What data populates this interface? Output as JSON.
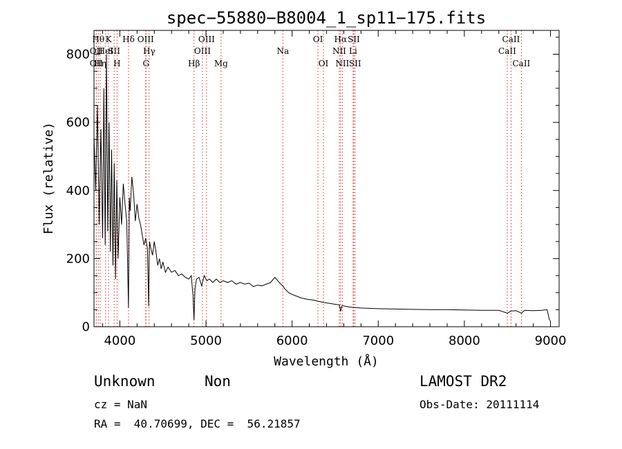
{
  "chart_data": {
    "type": "line",
    "title": "spec−55880−B8004_1_sp11−175.fits",
    "xlabel": "Wavelength (Å)",
    "ylabel": "Flux (relative)",
    "xlim": [
      3700,
      9100
    ],
    "ylim": [
      0,
      870
    ],
    "xticks": [
      4000,
      5000,
      6000,
      7000,
      8000,
      9000
    ],
    "yticks": [
      0,
      200,
      400,
      600,
      800
    ],
    "series": [
      {
        "x": [
          3700,
          3720,
          3740,
          3760,
          3780,
          3800,
          3815,
          3830,
          3845,
          3860,
          3875,
          3890,
          3905,
          3920,
          3935,
          3950,
          3965,
          3980,
          4000,
          4020,
          4040,
          4060,
          4080,
          4100,
          4110,
          4120,
          4140,
          4160,
          4180,
          4200,
          4220,
          4240,
          4260,
          4280,
          4300,
          4320,
          4335,
          4340,
          4345,
          4360,
          4380,
          4400,
          4420,
          4440,
          4460,
          4480,
          4500,
          4530,
          4560,
          4600,
          4640,
          4680,
          4720,
          4760,
          4800,
          4830,
          4850,
          4861,
          4872,
          4890,
          4920,
          4950,
          4980,
          5010,
          5040,
          5080,
          5120,
          5160,
          5200,
          5250,
          5300,
          5350,
          5400,
          5450,
          5500,
          5550,
          5600,
          5650,
          5700,
          5750,
          5800,
          5850,
          5890,
          5920,
          5960,
          6000,
          6050,
          6100,
          6150,
          6200,
          6250,
          6300,
          6350,
          6400,
          6450,
          6500,
          6550,
          6563,
          6580,
          6620,
          6660,
          6700,
          6750,
          6800,
          6900,
          7000,
          7200,
          7400,
          7600,
          7800,
          8000,
          8200,
          8400,
          8500,
          8540,
          8600,
          8662,
          8700,
          8800,
          8900,
          8960,
          8990
        ],
        "y": [
          560,
          400,
          650,
          300,
          580,
          260,
          700,
          240,
          800,
          280,
          600,
          220,
          520,
          180,
          480,
          140,
          430,
          200,
          380,
          300,
          420,
          360,
          310,
          55,
          380,
          340,
          440,
          390,
          310,
          360,
          320,
          300,
          270,
          240,
          260,
          230,
          60,
          200,
          250,
          230,
          210,
          250,
          220,
          180,
          200,
          170,
          190,
          160,
          175,
          160,
          165,
          150,
          155,
          145,
          140,
          150,
          90,
          20,
          110,
          140,
          145,
          120,
          150,
          135,
          140,
          130,
          140,
          130,
          135,
          130,
          135,
          125,
          130,
          125,
          128,
          118,
          122,
          120,
          125,
          130,
          145,
          130,
          120,
          110,
          100,
          95,
          90,
          85,
          82,
          80,
          78,
          75,
          72,
          70,
          68,
          66,
          64,
          45,
          62,
          60,
          58,
          57,
          56,
          55,
          54,
          53,
          52,
          51,
          50,
          50,
          49,
          48,
          48,
          40,
          46,
          47,
          40,
          48,
          47,
          48,
          50,
          18
        ]
      }
    ],
    "lines": [
      {
        "wl": 3727,
        "label": "OII",
        "tier": 2
      },
      {
        "wl": 3727,
        "label": "OII",
        "tier": 3
      },
      {
        "wl": 3750,
        "label": "Hθ",
        "tier": 1
      },
      {
        "wl": 3772,
        "label": "Hη",
        "tier": 3
      },
      {
        "wl": 3835,
        "label": "HeI",
        "tier": 2
      },
      {
        "wl": 3869,
        "label": "K",
        "tier": 1
      },
      {
        "wl": 3934,
        "label": "SII",
        "tier": 2
      },
      {
        "wl": 3968,
        "label": "H",
        "tier": 3
      },
      {
        "wl": 4101,
        "label": "Hδ",
        "tier": 1
      },
      {
        "wl": 4300,
        "label": "OIII",
        "tier": 1
      },
      {
        "wl": 4340,
        "label": "Hγ",
        "tier": 2
      },
      {
        "wl": 4304,
        "label": "G",
        "tier": 3
      },
      {
        "wl": 4861,
        "label": "Hβ",
        "tier": 3
      },
      {
        "wl": 4959,
        "label": "OIII",
        "tier": 2
      },
      {
        "wl": 5007,
        "label": "OIII",
        "tier": 1
      },
      {
        "wl": 5175,
        "label": "Mg",
        "tier": 3
      },
      {
        "wl": 5893,
        "label": "Na",
        "tier": 2
      },
      {
        "wl": 6300,
        "label": "OI",
        "tier": 1
      },
      {
        "wl": 6364,
        "label": "OI",
        "tier": 3
      },
      {
        "wl": 6548,
        "label": "NII",
        "tier": 2
      },
      {
        "wl": 6563,
        "label": "Hα",
        "tier": 1
      },
      {
        "wl": 6583,
        "label": "NII",
        "tier": 3
      },
      {
        "wl": 6716,
        "label": "SII",
        "tier": 1
      },
      {
        "wl": 6708,
        "label": "Li",
        "tier": 2
      },
      {
        "wl": 6731,
        "label": "SII",
        "tier": 3
      },
      {
        "wl": 8498,
        "label": "CaII",
        "tier": 2
      },
      {
        "wl": 8542,
        "label": "CaII",
        "tier": 1
      },
      {
        "wl": 8662,
        "label": "CaII",
        "tier": 3
      }
    ]
  },
  "info": {
    "class": "Unknown",
    "subclass": "Non",
    "survey": "LAMOST DR2",
    "cz": "cz = NaN",
    "obsdate": "Obs-Date: 20111114",
    "coords": "RA =  40.70699, DEC =  56.21857"
  }
}
